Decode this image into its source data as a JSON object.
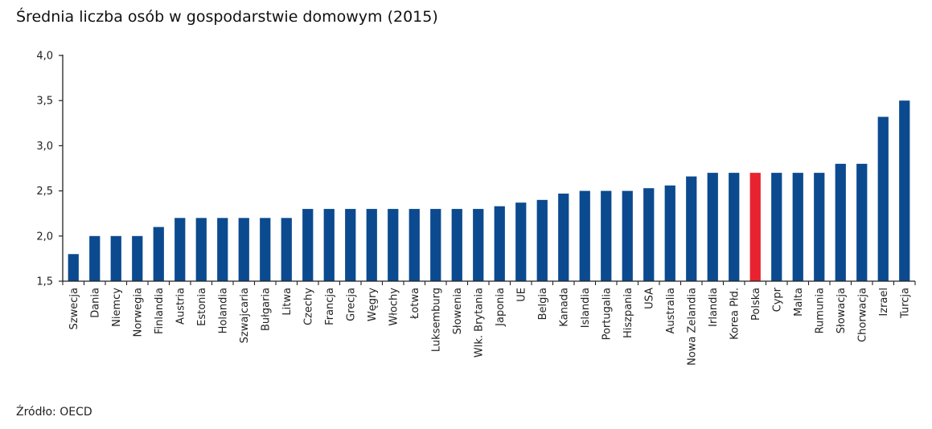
{
  "header": {
    "title": "Średnia liczba osób w gospodarstwie domowym (2015)"
  },
  "footer": {
    "source": "Źródło: OECD"
  },
  "colors": {
    "bar": "#0b4a8f",
    "highlight": "#e8232f",
    "axis": "#222222"
  },
  "chart_data": {
    "type": "bar",
    "title": "Średnia liczba osób w gospodarstwie domowym (2015)",
    "xlabel": "",
    "ylabel": "",
    "ylim": [
      1.5,
      4.0
    ],
    "yticks": [
      "1,5",
      "2,0",
      "2,5",
      "3,0",
      "3,5",
      "4,0"
    ],
    "ytick_values": [
      1.5,
      2.0,
      2.5,
      3.0,
      3.5,
      4.0
    ],
    "grid": false,
    "highlight": "Polska",
    "categories": [
      "Szwecja",
      "Dania",
      "Niemcy",
      "Norwegia",
      "Finlandia",
      "Austria",
      "Estonia",
      "Holandia",
      "Szwajcaria",
      "Bułgaria",
      "Litwa",
      "Czechy",
      "Francja",
      "Grecja",
      "Węgry",
      "Włochy",
      "Łotwa",
      "Luksemburg",
      "Słowenia",
      "Wlk. Brytania",
      "Japonia",
      "UE",
      "Belgia",
      "Kanada",
      "Islandia",
      "Portugalia",
      "Hiszpania",
      "USA",
      "Australia",
      "Nowa Zelandia",
      "Irlandia",
      "Korea Płd.",
      "Polska",
      "Cypr",
      "Malta",
      "Rumunia",
      "Słowacja",
      "Chorwacja",
      "Izrael",
      "Turcja"
    ],
    "values": [
      1.8,
      2.0,
      2.0,
      2.0,
      2.1,
      2.2,
      2.2,
      2.2,
      2.2,
      2.2,
      2.2,
      2.3,
      2.3,
      2.3,
      2.3,
      2.3,
      2.3,
      2.3,
      2.3,
      2.3,
      2.33,
      2.37,
      2.4,
      2.47,
      2.5,
      2.5,
      2.5,
      2.53,
      2.56,
      2.66,
      2.7,
      2.7,
      2.7,
      2.7,
      2.7,
      2.7,
      2.8,
      2.8,
      3.32,
      3.5
    ]
  }
}
